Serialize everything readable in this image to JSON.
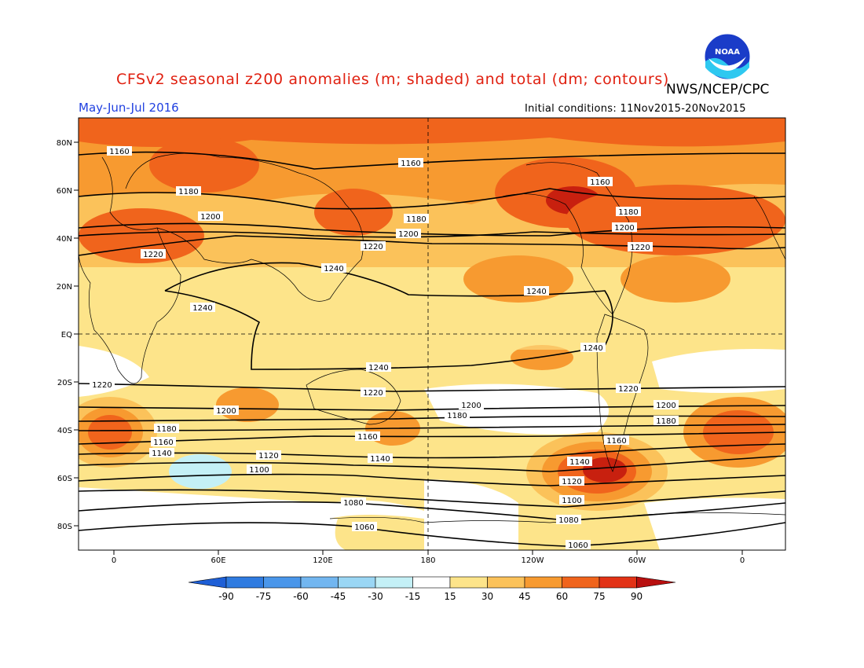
{
  "title": "CFSv2 seasonal z200 anomalies (m; shaded) and total (dm; contours)",
  "agency": "NWS/NCEP/CPC",
  "logo_text": "NOAA",
  "season": "May-Jun-Jul 2016",
  "initial_conditions": "Initial conditions: 11Nov2015-20Nov2015",
  "lat_labels": [
    "80N",
    "60N",
    "40N",
    "20N",
    "EQ",
    "20S",
    "40S",
    "60S",
    "80S"
  ],
  "lon_labels": [
    "0",
    "60E",
    "120E",
    "180",
    "120W",
    "60W",
    "0"
  ],
  "colorbar": {
    "ticks": [
      "-90",
      "-75",
      "-60",
      "-45",
      "-30",
      "-15",
      "15",
      "30",
      "45",
      "60",
      "75",
      "90"
    ],
    "colors": [
      "#1e5fd6",
      "#2f7be0",
      "#4a96ea",
      "#72b6f0",
      "#9ad6f4",
      "#c4f0f6",
      "#ffffff",
      "#fde48a",
      "#fbc25a",
      "#f79a30",
      "#f0641c",
      "#e23216",
      "#b80f0f"
    ]
  },
  "contour_labels": [
    "1060",
    "1080",
    "1100",
    "1120",
    "1140",
    "1160",
    "1180",
    "1200",
    "1220",
    "1240"
  ]
}
